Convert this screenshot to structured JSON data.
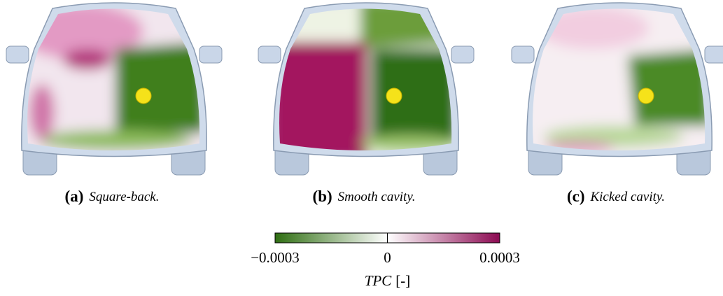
{
  "panels": [
    {
      "tag": "(a)",
      "caption": "Square-back."
    },
    {
      "tag": "(b)",
      "caption": "Smooth cavity."
    },
    {
      "tag": "(c)",
      "caption": "Kicked cavity."
    }
  ],
  "colorbar": {
    "lim": [
      -0.0003,
      0.0003
    ],
    "ticks": [
      {
        "value": -0.0003,
        "label": "−0.0003"
      },
      0,
      0.0003
    ],
    "colors": [
      "#2f6e12",
      "#ffffff",
      "#8c0a52"
    ],
    "label": "TPC",
    "unit": "[-]"
  }
}
